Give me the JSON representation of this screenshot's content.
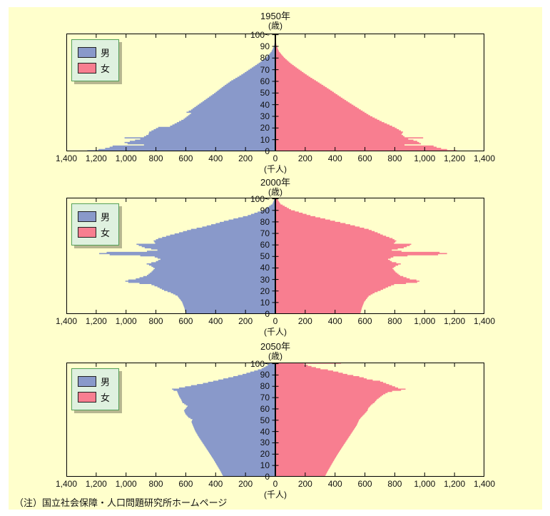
{
  "note": "（注）国立社会保障・人口問題研究所ホームページ",
  "legend": {
    "male_label": "男",
    "female_label": "女"
  },
  "colors": {
    "male": "#8999ca",
    "female": "#f87e90",
    "panel_bg": "#ffffcc",
    "legend_bg": "#dff1df",
    "legend_border": "#55a05a",
    "axis": "#000000"
  },
  "axis": {
    "age_unit_label": "(歳)",
    "count_unit_label": "(千人)",
    "y_tick_labels": [
      "0",
      "10",
      "20",
      "30",
      "40",
      "50",
      "60",
      "70",
      "80",
      "90",
      "100~"
    ],
    "x_tick_labels": [
      "1,400",
      "1,200",
      "1,000",
      "800",
      "600",
      "400",
      "200",
      "0",
      "200",
      "400",
      "600",
      "800",
      "1,000",
      "1,200",
      "1,400"
    ]
  },
  "chart_data": [
    {
      "type": "bar",
      "subtype": "population-pyramid",
      "title": "1950年",
      "xlabel": "千人",
      "ylabel": "歳",
      "xlim": [
        -1400,
        1400
      ],
      "ylim": [
        0,
        101
      ],
      "series": [
        {
          "name": "男",
          "side": "left",
          "points": [
            [
              0,
              1260
            ],
            [
              1,
              1185
            ],
            [
              2,
              1140
            ],
            [
              3,
              1110
            ],
            [
              4,
              1090
            ],
            [
              5,
              880
            ],
            [
              6,
              990
            ],
            [
              7,
              1010
            ],
            [
              8,
              975
            ],
            [
              9,
              940
            ],
            [
              10,
              905
            ],
            [
              11,
              1010
            ],
            [
              12,
              880
            ],
            [
              14,
              850
            ],
            [
              16,
              845
            ],
            [
              19,
              800
            ],
            [
              20,
              785
            ],
            [
              21,
              705
            ],
            [
              24,
              660
            ],
            [
              27,
              615
            ],
            [
              30,
              585
            ],
            [
              32,
              565
            ],
            [
              33,
              595
            ],
            [
              35,
              565
            ],
            [
              40,
              510
            ],
            [
              45,
              455
            ],
            [
              50,
              400
            ],
            [
              55,
              350
            ],
            [
              60,
              295
            ],
            [
              65,
              228
            ],
            [
              70,
              170
            ],
            [
              75,
              112
            ],
            [
              80,
              60
            ],
            [
              85,
              26
            ],
            [
              90,
              8
            ],
            [
              95,
              2
            ],
            [
              100,
              1
            ]
          ]
        },
        {
          "name": "女",
          "side": "right",
          "points": [
            [
              0,
              1215
            ],
            [
              1,
              1150
            ],
            [
              2,
              1110
            ],
            [
              3,
              1080
            ],
            [
              4,
              1060
            ],
            [
              5,
              865
            ],
            [
              6,
              975
            ],
            [
              8,
              950
            ],
            [
              9,
              925
            ],
            [
              10,
              890
            ],
            [
              11,
              990
            ],
            [
              12,
              865
            ],
            [
              14,
              845
            ],
            [
              16,
              855
            ],
            [
              20,
              800
            ],
            [
              25,
              712
            ],
            [
              30,
              635
            ],
            [
              35,
              572
            ],
            [
              40,
              510
            ],
            [
              45,
              450
            ],
            [
              50,
              392
            ],
            [
              55,
              333
            ],
            [
              60,
              272
            ],
            [
              65,
              210
            ],
            [
              70,
              155
            ],
            [
              75,
              102
            ],
            [
              80,
              58
            ],
            [
              85,
              25
            ],
            [
              90,
              8
            ],
            [
              95,
              2
            ],
            [
              100,
              1
            ]
          ]
        }
      ]
    },
    {
      "type": "bar",
      "subtype": "population-pyramid",
      "title": "2000年",
      "xlabel": "千人",
      "ylabel": "歳",
      "xlim": [
        -1400,
        1400
      ],
      "ylim": [
        0,
        101
      ],
      "series": [
        {
          "name": "男",
          "side": "left",
          "points": [
            [
              0,
              600
            ],
            [
              5,
              610
            ],
            [
              10,
              625
            ],
            [
              15,
              655
            ],
            [
              18,
              700
            ],
            [
              20,
              745
            ],
            [
              23,
              790
            ],
            [
              25,
              830
            ],
            [
              26,
              910
            ],
            [
              27,
              985
            ],
            [
              28,
              1005
            ],
            [
              29,
              985
            ],
            [
              30,
              935
            ],
            [
              33,
              860
            ],
            [
              36,
              830
            ],
            [
              39,
              808
            ],
            [
              41,
              830
            ],
            [
              43,
              862
            ],
            [
              45,
              800
            ],
            [
              47,
              770
            ],
            [
              49,
              808
            ],
            [
              50,
              905
            ],
            [
              51,
              1110
            ],
            [
              52,
              1180
            ],
            [
              53,
              1130
            ],
            [
              54,
              860
            ],
            [
              55,
              790
            ],
            [
              57,
              875
            ],
            [
              59,
              915
            ],
            [
              60,
              930
            ],
            [
              61,
              805
            ],
            [
              63,
              815
            ],
            [
              65,
              785
            ],
            [
              68,
              705
            ],
            [
              70,
              645
            ],
            [
              73,
              565
            ],
            [
              75,
              490
            ],
            [
              78,
              400
            ],
            [
              80,
              345
            ],
            [
              85,
              185
            ],
            [
              90,
              75
            ],
            [
              95,
              20
            ],
            [
              100,
              4
            ]
          ]
        },
        {
          "name": "女",
          "side": "right",
          "points": [
            [
              0,
              570
            ],
            [
              5,
              580
            ],
            [
              10,
              595
            ],
            [
              15,
              625
            ],
            [
              18,
              665
            ],
            [
              20,
              705
            ],
            [
              23,
              755
            ],
            [
              25,
              795
            ],
            [
              26,
              875
            ],
            [
              27,
              950
            ],
            [
              28,
              965
            ],
            [
              29,
              945
            ],
            [
              30,
              900
            ],
            [
              33,
              835
            ],
            [
              36,
              805
            ],
            [
              39,
              785
            ],
            [
              41,
              805
            ],
            [
              43,
              840
            ],
            [
              45,
              780
            ],
            [
              47,
              755
            ],
            [
              49,
              790
            ],
            [
              50,
              885
            ],
            [
              51,
              1090
            ],
            [
              52,
              1150
            ],
            [
              53,
              1100
            ],
            [
              54,
              845
            ],
            [
              55,
              780
            ],
            [
              57,
              860
            ],
            [
              59,
              900
            ],
            [
              60,
              910
            ],
            [
              61,
              795
            ],
            [
              63,
              810
            ],
            [
              65,
              785
            ],
            [
              68,
              720
            ],
            [
              70,
              685
            ],
            [
              73,
              625
            ],
            [
              75,
              565
            ],
            [
              78,
              470
            ],
            [
              80,
              400
            ],
            [
              85,
              235
            ],
            [
              90,
              105
            ],
            [
              95,
              35
            ],
            [
              100,
              10
            ]
          ]
        }
      ]
    },
    {
      "type": "bar",
      "subtype": "population-pyramid",
      "title": "2050年",
      "xlabel": "千人",
      "ylabel": "歳",
      "xlim": [
        -1400,
        1400
      ],
      "ylim": [
        0,
        101
      ],
      "series": [
        {
          "name": "男",
          "side": "left",
          "points": [
            [
              0,
              350
            ],
            [
              5,
              370
            ],
            [
              10,
              393
            ],
            [
              15,
              415
            ],
            [
              20,
              440
            ],
            [
              25,
              465
            ],
            [
              30,
              490
            ],
            [
              35,
              515
            ],
            [
              40,
              537
            ],
            [
              45,
              553
            ],
            [
              48,
              562
            ],
            [
              50,
              556
            ],
            [
              52,
              582
            ],
            [
              55,
              602
            ],
            [
              58,
              612
            ],
            [
              60,
              600
            ],
            [
              62,
              588
            ],
            [
              65,
              622
            ],
            [
              68,
              632
            ],
            [
              70,
              642
            ],
            [
              73,
              652
            ],
            [
              75,
              658
            ],
            [
              76,
              682
            ],
            [
              77,
              692
            ],
            [
              78,
              645
            ],
            [
              80,
              565
            ],
            [
              82,
              485
            ],
            [
              85,
              382
            ],
            [
              88,
              282
            ],
            [
              90,
              220
            ],
            [
              93,
              142
            ],
            [
              95,
              92
            ],
            [
              98,
              52
            ],
            [
              99,
              42
            ],
            [
              100,
              85
            ]
          ]
        },
        {
          "name": "女",
          "side": "right",
          "points": [
            [
              0,
              333
            ],
            [
              5,
              353
            ],
            [
              10,
              375
            ],
            [
              15,
              397
            ],
            [
              20,
              420
            ],
            [
              25,
              445
            ],
            [
              30,
              470
            ],
            [
              35,
              495
            ],
            [
              40,
              520
            ],
            [
              45,
              545
            ],
            [
              50,
              562
            ],
            [
              53,
              582
            ],
            [
              55,
              597
            ],
            [
              58,
              617
            ],
            [
              60,
              622
            ],
            [
              63,
              642
            ],
            [
              65,
              662
            ],
            [
              68,
              682
            ],
            [
              70,
              702
            ],
            [
              72,
              722
            ],
            [
              74,
              752
            ],
            [
              75,
              782
            ],
            [
              76,
              842
            ],
            [
              77,
              872
            ],
            [
              78,
              822
            ],
            [
              80,
              782
            ],
            [
              82,
              742
            ],
            [
              84,
              702
            ],
            [
              85,
              652
            ],
            [
              86,
              612
            ],
            [
              87,
              592
            ],
            [
              88,
              562
            ],
            [
              90,
              482
            ],
            [
              92,
              422
            ],
            [
              94,
              352
            ],
            [
              95,
              302
            ],
            [
              97,
              242
            ],
            [
              99,
              192
            ],
            [
              100,
              440
            ]
          ]
        }
      ]
    }
  ]
}
